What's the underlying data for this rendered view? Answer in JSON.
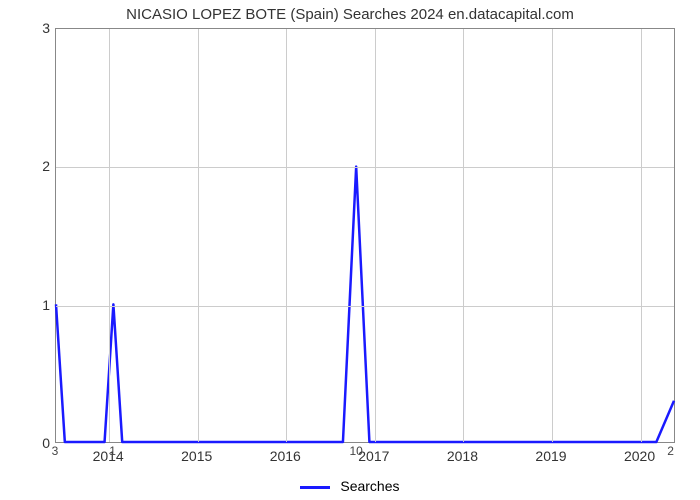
{
  "chart": {
    "type": "line",
    "title": "NICASIO LOPEZ BOTE (Spain) Searches 2024 en.datacapital.com",
    "title_fontsize": 15,
    "title_color": "#333333",
    "background_color": "#ffffff",
    "plot_border_color": "#888888",
    "grid_color": "#cccccc",
    "xlim": [
      2013.4,
      2020.4
    ],
    "ylim": [
      0,
      3
    ],
    "yticks": [
      0,
      1,
      2,
      3
    ],
    "xticks": [
      2014,
      2015,
      2016,
      2017,
      2018,
      2019,
      2020
    ],
    "tick_fontsize": 14,
    "tick_color": "#333333",
    "line_color": "#1a1aff",
    "line_width": 2.5,
    "legend_label": "Searches",
    "legend_fontsize": 14,
    "data_points": [
      {
        "x": 2013.4,
        "y": 1.0
      },
      {
        "x": 2013.5,
        "y": 0.0
      },
      {
        "x": 2013.95,
        "y": 0.0
      },
      {
        "x": 2014.05,
        "y": 1.0
      },
      {
        "x": 2014.15,
        "y": 0.0
      },
      {
        "x": 2016.65,
        "y": 0.0
      },
      {
        "x": 2016.8,
        "y": 2.0
      },
      {
        "x": 2016.95,
        "y": 0.0
      },
      {
        "x": 2020.2,
        "y": 0.0
      },
      {
        "x": 2020.4,
        "y": 0.3
      }
    ],
    "below_axis_labels": [
      {
        "x": 2013.4,
        "text": "3"
      },
      {
        "x": 2014.05,
        "text": "1"
      },
      {
        "x": 2016.8,
        "text": "10"
      },
      {
        "x": 2020.35,
        "text": "2"
      }
    ]
  }
}
